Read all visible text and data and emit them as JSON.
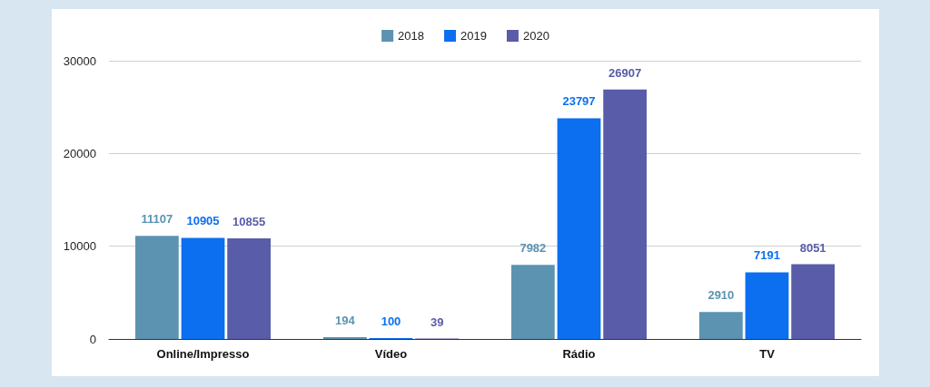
{
  "chart_data": {
    "type": "bar",
    "categories": [
      "Online/Impresso",
      "Vídeo",
      "Rádio",
      "TV"
    ],
    "series": [
      {
        "name": "2018",
        "color": "#5b93b0",
        "values": [
          11107,
          194,
          7982,
          2910
        ]
      },
      {
        "name": "2019",
        "color": "#0b6ff0",
        "values": [
          10905,
          100,
          23797,
          7191
        ]
      },
      {
        "name": "2020",
        "color": "#595ca8",
        "values": [
          10855,
          39,
          26907,
          8051
        ]
      }
    ],
    "ylim": [
      0,
      30000
    ],
    "yticks": [
      0,
      10000,
      20000,
      30000
    ],
    "grid": "y",
    "legend": "top",
    "data_labels": true
  }
}
